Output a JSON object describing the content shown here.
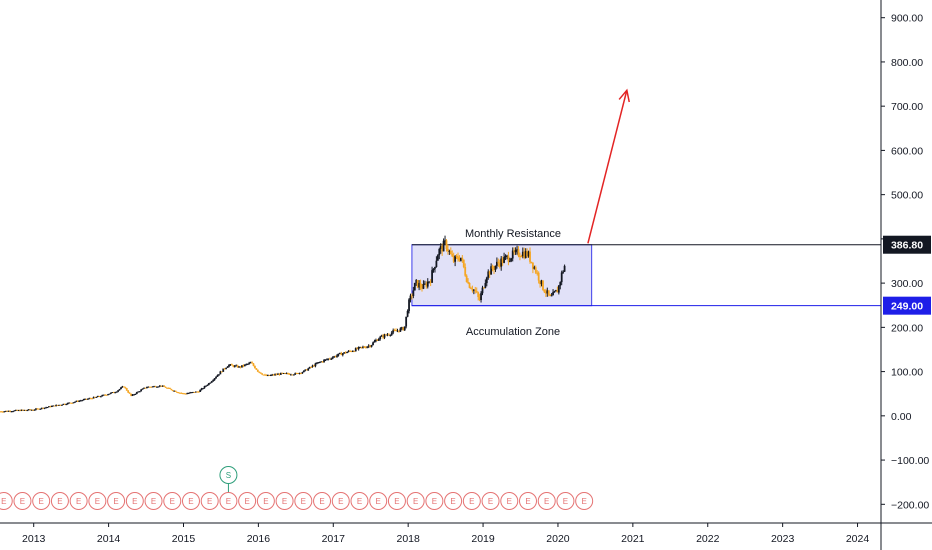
{
  "chart_data": {
    "type": "candlestick",
    "price_axis": {
      "min": -240,
      "max": 940,
      "ticks": [
        900,
        800,
        700,
        600,
        500,
        400,
        300,
        200,
        100,
        0,
        -100,
        -200
      ],
      "tick_labels": [
        "900.00",
        "800.00",
        "700.00",
        "600.00",
        "500.00",
        "400.00",
        "300.00",
        "200.00",
        "100.00",
        "0.00",
        "−100.00",
        "−200.00"
      ]
    },
    "time_axis": {
      "min": 2012.55,
      "max": 2024.3,
      "ticks": [
        2013,
        2014,
        2015,
        2016,
        2017,
        2018,
        2019,
        2020,
        2021,
        2022,
        2023,
        2024
      ],
      "tick_labels": [
        "2013",
        "2014",
        "2015",
        "2016",
        "2017",
        "2018",
        "2019",
        "2020",
        "2021",
        "2022",
        "2023",
        "2024"
      ]
    },
    "price_path": [
      [
        2012.55,
        10
      ],
      [
        2013.0,
        14
      ],
      [
        2013.5,
        30
      ],
      [
        2013.9,
        45
      ],
      [
        2014.1,
        55
      ],
      [
        2014.2,
        67
      ],
      [
        2014.3,
        45
      ],
      [
        2014.5,
        65
      ],
      [
        2014.7,
        68
      ],
      [
        2014.9,
        55
      ],
      [
        2015.0,
        50
      ],
      [
        2015.2,
        55
      ],
      [
        2015.35,
        75
      ],
      [
        2015.5,
        100
      ],
      [
        2015.6,
        115
      ],
      [
        2015.75,
        110
      ],
      [
        2015.9,
        120
      ],
      [
        2016.0,
        100
      ],
      [
        2016.1,
        90
      ],
      [
        2016.3,
        95
      ],
      [
        2016.5,
        95
      ],
      [
        2016.6,
        100
      ],
      [
        2016.8,
        120
      ],
      [
        2016.95,
        130
      ],
      [
        2017.1,
        140
      ],
      [
        2017.3,
        150
      ],
      [
        2017.5,
        160
      ],
      [
        2017.6,
        175
      ],
      [
        2017.8,
        190
      ],
      [
        2017.95,
        198
      ],
      [
        2018.0,
        250
      ],
      [
        2018.1,
        300
      ],
      [
        2018.2,
        290
      ],
      [
        2018.3,
        310
      ],
      [
        2018.4,
        370
      ],
      [
        2018.5,
        390
      ],
      [
        2018.6,
        350
      ],
      [
        2018.7,
        360
      ],
      [
        2018.8,
        300
      ],
      [
        2018.9,
        280
      ],
      [
        2018.95,
        260
      ],
      [
        2019.05,
        320
      ],
      [
        2019.2,
        345
      ],
      [
        2019.35,
        360
      ],
      [
        2019.5,
        370
      ],
      [
        2019.6,
        365
      ],
      [
        2019.7,
        330
      ],
      [
        2019.8,
        290
      ],
      [
        2019.9,
        265
      ],
      [
        2020.0,
        285
      ],
      [
        2020.05,
        320
      ],
      [
        2020.1,
        345
      ]
    ],
    "range_box": {
      "x_start": 2018.05,
      "x_end": 2020.45,
      "top": 386.8,
      "bottom": 249.0
    },
    "horizontal_levels": [
      {
        "price": 386.8,
        "label": "386.80",
        "color": "#131722"
      },
      {
        "price": 249.0,
        "label": "249.00",
        "color": "#1e1ee8"
      }
    ],
    "annotations": [
      {
        "text": "Monthly Resistance",
        "x": 2019.4,
        "price": 413
      },
      {
        "text": "Accumulation Zone",
        "x": 2019.4,
        "price": 192
      }
    ],
    "arrow": {
      "from": [
        2020.4,
        390
      ],
      "to": [
        2020.92,
        736
      ],
      "color": "#e32424"
    },
    "colors": {
      "up_candle": "#131722",
      "down_candle": "#f5a623",
      "box_fill": "#dcdcf7",
      "box_stroke": "#1e1ee8",
      "event_stroke": "#e57373",
      "split_stroke": "#2e9e7a"
    },
    "events": {
      "earnings_label": "E",
      "earnings_times": [
        2012.6,
        2012.85,
        2013.1,
        2013.35,
        2013.6,
        2013.85,
        2014.1,
        2014.35,
        2014.6,
        2014.85,
        2015.1,
        2015.35,
        2015.6,
        2015.85,
        2016.1,
        2016.35,
        2016.6,
        2016.85,
        2017.1,
        2017.35,
        2017.6,
        2017.85,
        2018.1,
        2018.35,
        2018.6,
        2018.85,
        2019.1,
        2019.35,
        2019.6,
        2019.85,
        2020.1,
        2020.35
      ],
      "split_label": "S",
      "split_time": 2015.6
    }
  }
}
